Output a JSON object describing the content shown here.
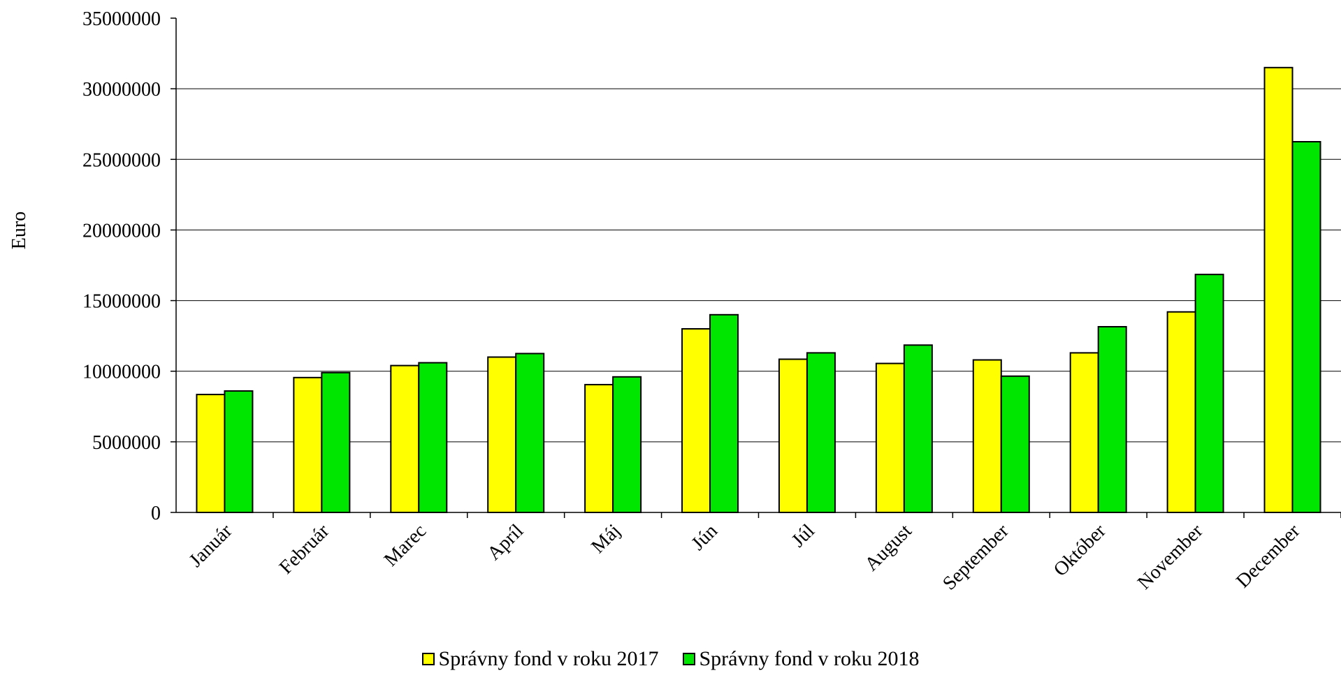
{
  "chart_data": {
    "type": "bar",
    "title": "",
    "xlabel": "",
    "ylabel": "Euro",
    "ylim": [
      0,
      35000000
    ],
    "yticks": [
      "0",
      "5000000",
      "10000000",
      "15000000",
      "20000000",
      "25000000",
      "30000000",
      "35000000"
    ],
    "categories": [
      "Január",
      "Február",
      "Marec",
      "Apríl",
      "Máj",
      "Jún",
      "Júl",
      "August",
      "September",
      "Október",
      "November",
      "December"
    ],
    "grid": true,
    "legend_position": "bottom",
    "series": [
      {
        "name": "Správny fond v roku 2017",
        "color": "#ffff00",
        "values": [
          8350000,
          9550000,
          10400000,
          11000000,
          9050000,
          13000000,
          10850000,
          10550000,
          10800000,
          11300000,
          14200000,
          31500000
        ]
      },
      {
        "name": "Správny fond v roku 2018",
        "color": "#00e600",
        "values": [
          8600000,
          9900000,
          10600000,
          11250000,
          9600000,
          14000000,
          11300000,
          11850000,
          9650000,
          13150000,
          16850000,
          26250000
        ]
      }
    ]
  }
}
